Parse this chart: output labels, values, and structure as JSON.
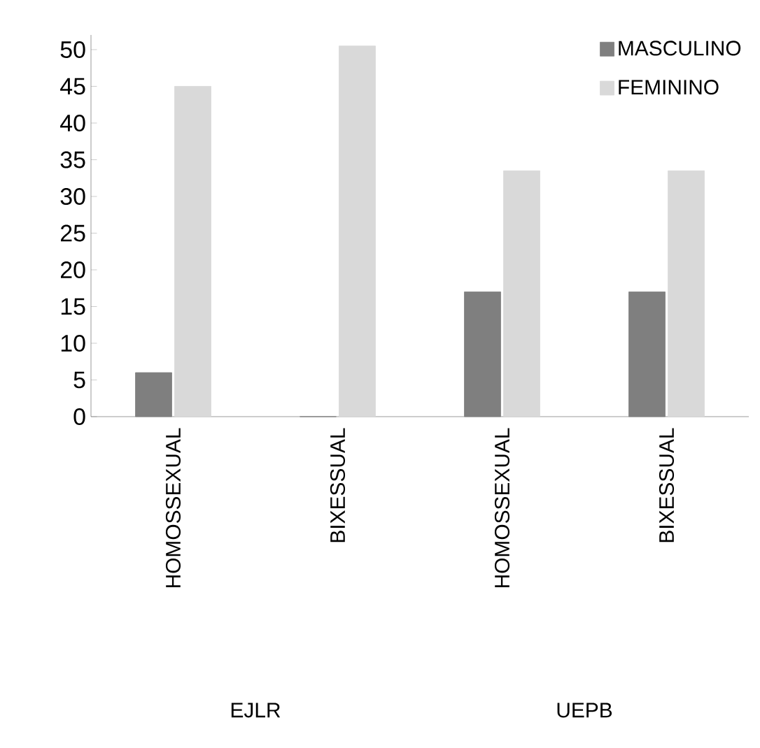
{
  "chart_data": {
    "type": "bar",
    "categories": [
      "HOMOSSEXUAL",
      "BIXESSUAL",
      "HOMOSSEXUAL",
      "BIXESSUAL"
    ],
    "series": [
      {
        "name": "MASCULINO",
        "color": "#7f7f7f",
        "values": [
          6,
          0,
          17,
          17
        ]
      },
      {
        "name": "FEMININO",
        "color": "#d9d9d9",
        "values": [
          45,
          50.5,
          33.5,
          33.5
        ]
      }
    ],
    "ylim": [
      0,
      52
    ],
    "yticks": [
      0,
      5,
      10,
      15,
      20,
      25,
      30,
      35,
      40,
      45,
      50
    ],
    "annotations": [
      "EJLR",
      "UEPB"
    ],
    "legend": "top right",
    "grid": false
  }
}
